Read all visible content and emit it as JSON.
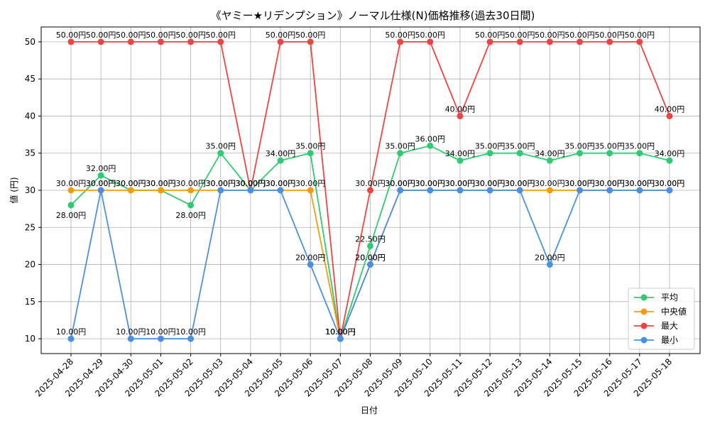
{
  "chart_data": {
    "type": "line",
    "title": "《ヤミー★リデンプション》ノーマル仕様(N)価格推移(過去30日間)",
    "xlabel": "日付",
    "ylabel": "値 (円)",
    "ylim": [
      8,
      52
    ],
    "yticks": [
      10,
      15,
      20,
      25,
      30,
      35,
      40,
      45,
      50
    ],
    "grid": true,
    "legend_position": "lower-right",
    "categories": [
      "2025-04-28",
      "2025-04-29",
      "2025-04-30",
      "2025-05-01",
      "2025-05-02",
      "2025-05-03",
      "2025-05-04",
      "2025-05-05",
      "2025-05-06",
      "2025-05-07",
      "2025-05-08",
      "2025-05-09",
      "2025-05-10",
      "2025-05-11",
      "2025-05-12",
      "2025-05-13",
      "2025-05-14",
      "2025-05-15",
      "2025-05-16",
      "2025-05-17",
      "2025-05-18"
    ],
    "series": [
      {
        "name": "平均",
        "color": "#2ecc71",
        "values": [
          28,
          32,
          30,
          30,
          28,
          35,
          30,
          34,
          35,
          10,
          22.5,
          35,
          36,
          34,
          35,
          35,
          34,
          35,
          35,
          35,
          34
        ]
      },
      {
        "name": "中央値",
        "color": "#f39c12",
        "values": [
          30,
          30,
          30,
          30,
          30,
          30,
          30,
          30,
          30,
          10,
          20,
          30,
          30,
          30,
          30,
          30,
          30,
          30,
          30,
          30,
          30
        ]
      },
      {
        "name": "最大",
        "color": "#ef4444",
        "values": [
          50,
          50,
          50,
          50,
          50,
          50,
          30,
          50,
          50,
          10,
          30,
          50,
          50,
          40,
          50,
          50,
          50,
          50,
          50,
          50,
          40
        ]
      },
      {
        "name": "最小",
        "color": "#4a90e2",
        "values": [
          10,
          30,
          10,
          10,
          10,
          30,
          30,
          30,
          20,
          10,
          20,
          30,
          30,
          30,
          30,
          30,
          20,
          30,
          30,
          30,
          30
        ]
      }
    ],
    "value_suffix": "円"
  }
}
